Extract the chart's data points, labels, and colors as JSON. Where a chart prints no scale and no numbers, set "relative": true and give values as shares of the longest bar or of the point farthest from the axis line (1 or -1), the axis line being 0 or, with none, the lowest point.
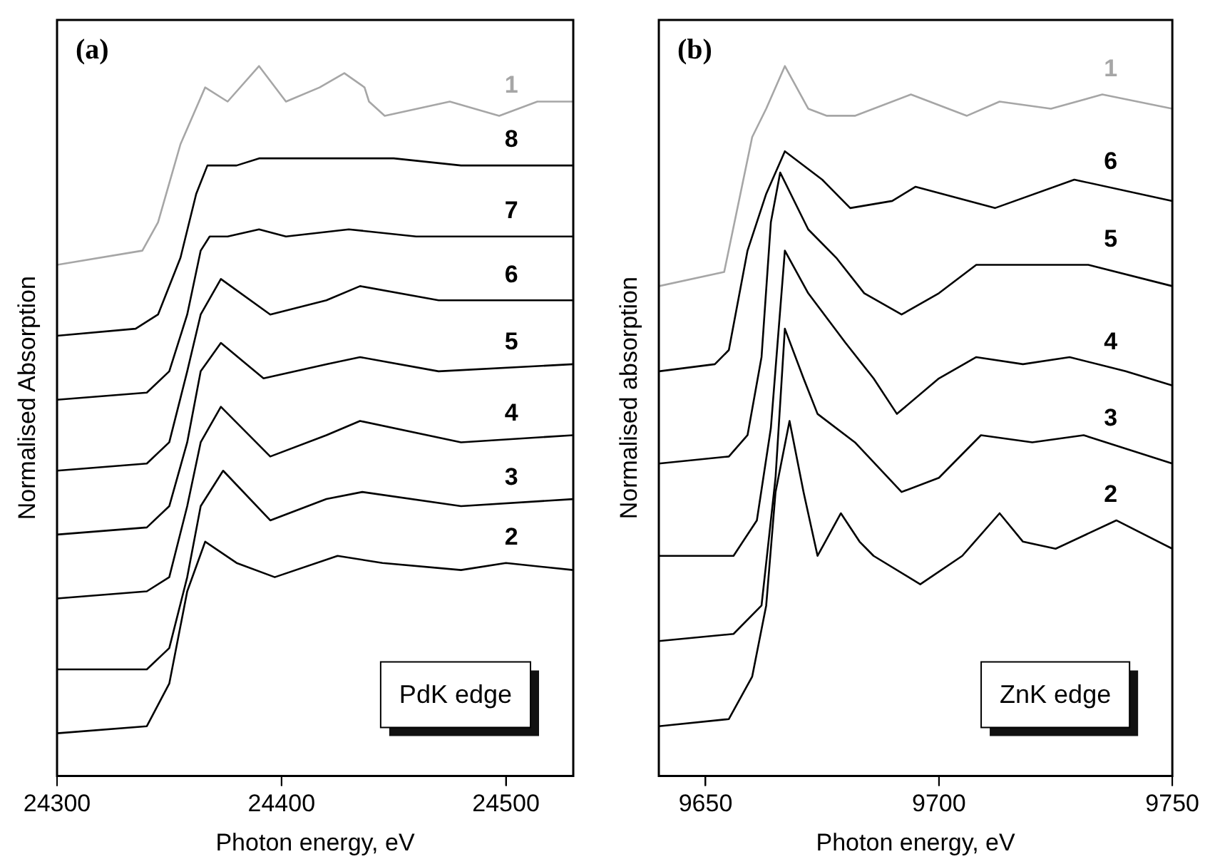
{
  "chart_data": [
    {
      "type": "line",
      "title": "(a)",
      "xlabel": "Photon energy, eV",
      "ylabel": "Normalised Absorption",
      "relative": true,
      "xlim": [
        24300,
        24530
      ],
      "xticks": [
        24300,
        24400,
        24500
      ],
      "grid": false,
      "legend": false,
      "marker": "none",
      "annotations": [
        "PdK edge"
      ],
      "series": [
        {
          "name": "1",
          "color": "#a6a6a6",
          "x": [
            24300,
            24338,
            24345,
            24355,
            24366,
            24376,
            24390,
            24402,
            24417,
            24428,
            24437,
            24439,
            24446,
            24475,
            24497,
            24514,
            24530
          ],
          "values": [
            0.72,
            0.74,
            0.78,
            0.89,
            0.97,
            0.95,
            1,
            0.95,
            0.97,
            0.99,
            0.97,
            0.95,
            0.93,
            0.95,
            0.93,
            0.95,
            0.95
          ]
        },
        {
          "name": "8",
          "color": "#000000",
          "x": [
            24300,
            24335,
            24345,
            24355,
            24362,
            24367,
            24380,
            24390,
            24420,
            24450,
            24480,
            24510,
            24530
          ],
          "values": [
            0.62,
            0.63,
            0.65,
            0.73,
            0.82,
            0.86,
            0.86,
            0.87,
            0.87,
            0.87,
            0.86,
            0.86,
            0.86
          ]
        },
        {
          "name": "7",
          "color": "#000000",
          "x": [
            24300,
            24340,
            24350,
            24358,
            24364,
            24368,
            24376,
            24390,
            24402,
            24430,
            24460,
            24500,
            24530
          ],
          "values": [
            0.53,
            0.54,
            0.57,
            0.65,
            0.74,
            0.76,
            0.76,
            0.77,
            0.76,
            0.77,
            0.76,
            0.76,
            0.76
          ]
        },
        {
          "name": "6",
          "color": "#000000",
          "x": [
            24300,
            24340,
            24350,
            24358,
            24364,
            24373,
            24395,
            24420,
            24435,
            24470,
            24530
          ],
          "values": [
            0.43,
            0.44,
            0.47,
            0.57,
            0.65,
            0.7,
            0.65,
            0.67,
            0.69,
            0.67,
            0.67
          ]
        },
        {
          "name": "5",
          "color": "#000000",
          "x": [
            24300,
            24340,
            24350,
            24358,
            24364,
            24373,
            24392,
            24420,
            24435,
            24470,
            24530
          ],
          "values": [
            0.34,
            0.35,
            0.38,
            0.47,
            0.57,
            0.61,
            0.56,
            0.58,
            0.59,
            0.57,
            0.58
          ]
        },
        {
          "name": "4",
          "color": "#000000",
          "x": [
            24300,
            24340,
            24350,
            24358,
            24364,
            24373,
            24395,
            24420,
            24435,
            24480,
            24530
          ],
          "values": [
            0.25,
            0.26,
            0.28,
            0.38,
            0.47,
            0.52,
            0.45,
            0.48,
            0.5,
            0.47,
            0.48
          ]
        },
        {
          "name": "3",
          "color": "#000000",
          "x": [
            24300,
            24340,
            24350,
            24358,
            24364,
            24374,
            24395,
            24420,
            24436,
            24480,
            24530
          ],
          "values": [
            0.15,
            0.15,
            0.18,
            0.28,
            0.38,
            0.43,
            0.36,
            0.39,
            0.4,
            0.38,
            0.39
          ]
        },
        {
          "name": "2",
          "color": "#000000",
          "x": [
            24300,
            24340,
            24350,
            24358,
            24366,
            24380,
            24397,
            24425,
            24445,
            24480,
            24500,
            24530
          ],
          "values": [
            0.06,
            0.07,
            0.13,
            0.26,
            0.33,
            0.3,
            0.28,
            0.31,
            0.3,
            0.29,
            0.3,
            0.29
          ]
        }
      ]
    },
    {
      "type": "line",
      "title": "(b)",
      "xlabel": "Photon energy, eV",
      "ylabel": "Normalised absorption",
      "relative": true,
      "xlim": [
        9640,
        9750
      ],
      "xticks": [
        9650,
        9700,
        9750
      ],
      "grid": false,
      "legend": false,
      "marker": "none",
      "annotations": [
        "ZnK edge"
      ],
      "series": [
        {
          "name": "1",
          "color": "#a6a6a6",
          "x": [
            9640,
            9654,
            9660,
            9663,
            9667,
            9672,
            9676,
            9682,
            9694,
            9706,
            9713,
            9724,
            9735,
            9750
          ],
          "values": [
            0.69,
            0.71,
            0.9,
            0.94,
            1,
            0.94,
            0.93,
            0.93,
            0.96,
            0.93,
            0.95,
            0.94,
            0.96,
            0.94
          ]
        },
        {
          "name": "6",
          "color": "#000000",
          "x": [
            9640,
            9652,
            9655,
            9659,
            9663,
            9667,
            9675,
            9681,
            9690,
            9695,
            9712,
            9729,
            9750
          ],
          "values": [
            0.57,
            0.58,
            0.6,
            0.74,
            0.82,
            0.88,
            0.84,
            0.8,
            0.81,
            0.83,
            0.8,
            0.84,
            0.81
          ]
        },
        {
          "name": "5",
          "color": "#000000",
          "x": [
            9640,
            9655,
            9659,
            9662,
            9664,
            9666,
            9672,
            9678,
            9684,
            9692,
            9700,
            9708,
            9720,
            9732,
            9750
          ],
          "values": [
            0.44,
            0.45,
            0.48,
            0.59,
            0.78,
            0.85,
            0.77,
            0.73,
            0.68,
            0.65,
            0.68,
            0.72,
            0.72,
            0.72,
            0.69
          ]
        },
        {
          "name": "4",
          "color": "#000000",
          "x": [
            9640,
            9656,
            9661,
            9664,
            9667,
            9672,
            9680,
            9686,
            9691,
            9700,
            9708,
            9718,
            9728,
            9740,
            9750
          ],
          "values": [
            0.31,
            0.31,
            0.36,
            0.49,
            0.74,
            0.68,
            0.61,
            0.56,
            0.51,
            0.56,
            0.59,
            0.58,
            0.59,
            0.57,
            0.55
          ]
        },
        {
          "name": "3",
          "color": "#000000",
          "x": [
            9640,
            9656,
            9662,
            9665,
            9667,
            9671,
            9674,
            9682,
            9692,
            9700,
            9709,
            9720,
            9731,
            9750
          ],
          "values": [
            0.19,
            0.2,
            0.24,
            0.42,
            0.63,
            0.56,
            0.51,
            0.47,
            0.4,
            0.42,
            0.48,
            0.47,
            0.48,
            0.44
          ]
        },
        {
          "name": "2",
          "color": "#000000",
          "x": [
            9640,
            9655,
            9660,
            9663,
            9665,
            9668,
            9671,
            9674,
            9679,
            9683,
            9686,
            9696,
            9705,
            9713,
            9718,
            9725,
            9738,
            9750
          ],
          "values": [
            0.07,
            0.08,
            0.14,
            0.24,
            0.4,
            0.5,
            0.4,
            0.31,
            0.37,
            0.33,
            0.31,
            0.27,
            0.31,
            0.37,
            0.33,
            0.32,
            0.36,
            0.32
          ]
        }
      ]
    }
  ]
}
